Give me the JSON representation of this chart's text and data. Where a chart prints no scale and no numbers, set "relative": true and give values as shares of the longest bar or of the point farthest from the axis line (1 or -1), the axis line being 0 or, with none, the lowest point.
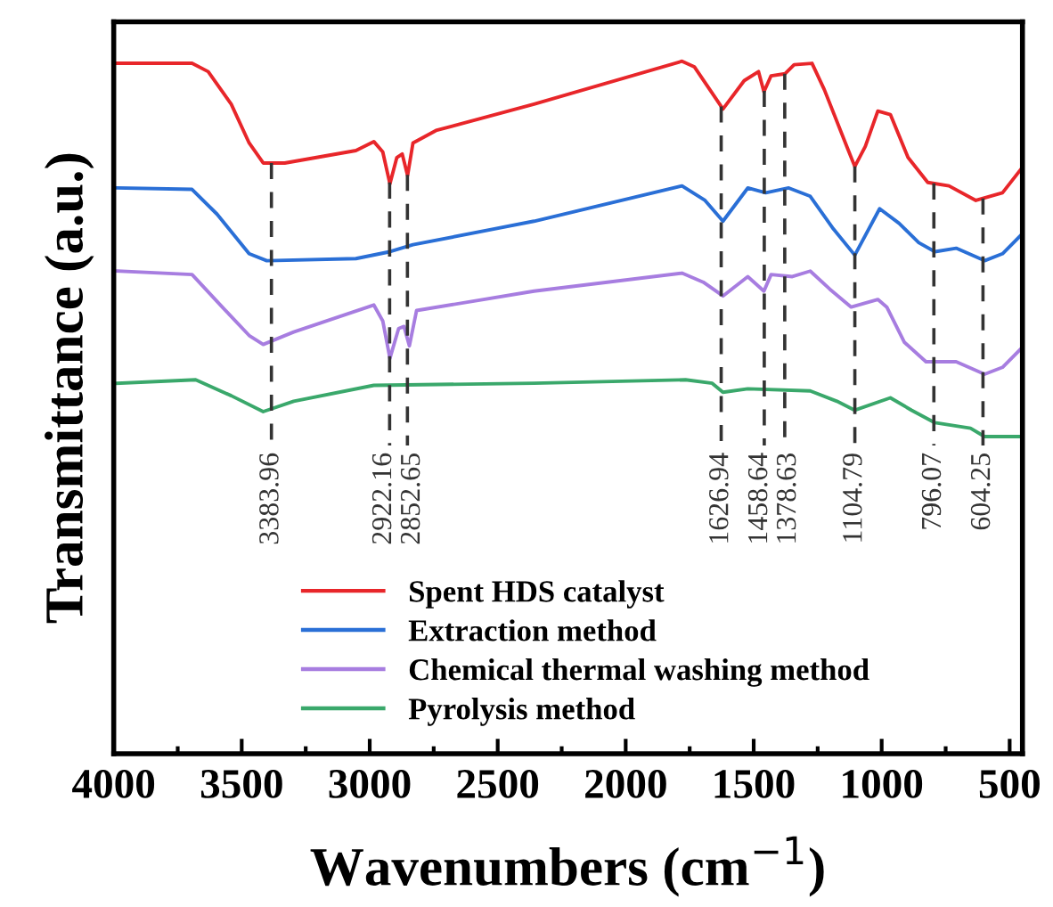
{
  "chart_data": {
    "type": "line",
    "relative": true,
    "xlabel": "Wavenumbers (cm$^{−1}$)",
    "ylabel": "Transmittance (a.u.)",
    "xlim": [
      4000,
      450
    ],
    "xticks": [
      4000,
      3500,
      3000,
      2500,
      2000,
      1500,
      1000,
      500
    ],
    "legend": "bottom",
    "grid": false,
    "series": [
      {
        "name": "Spent HDS catalyst",
        "color": "#e8262a",
        "x": [
          3986,
          3694,
          3631,
          3541,
          3471,
          3416,
          3332,
          3054,
          2984,
          2949,
          2921,
          2894,
          2873,
          2852,
          2831,
          2741,
          2358,
          1780,
          1732,
          1620,
          1537,
          1481,
          1460,
          1432,
          1377,
          1342,
          1272,
          1224,
          1133,
          1105,
          1064,
          1015,
          966,
          897,
          820,
          737,
          632,
          528,
          458
        ],
        "values": [
          0.997,
          0.997,
          0.985,
          0.938,
          0.882,
          0.853,
          0.853,
          0.871,
          0.884,
          0.869,
          0.823,
          0.861,
          0.866,
          0.835,
          0.882,
          0.9,
          0.938,
          1.0,
          0.992,
          0.931,
          0.972,
          0.985,
          0.956,
          0.979,
          0.982,
          0.995,
          0.997,
          0.959,
          0.874,
          0.848,
          0.877,
          0.928,
          0.923,
          0.861,
          0.825,
          0.82,
          0.799,
          0.81,
          0.843
        ]
      },
      {
        "name": "Extraction method",
        "color": "#2a6fd6",
        "x": [
          3986,
          3694,
          3596,
          3471,
          3402,
          3054,
          2921,
          2831,
          2358,
          1780,
          1690,
          1620,
          1523,
          1453,
          1363,
          1279,
          1189,
          1105,
          1008,
          932,
          855,
          792,
          709,
          598,
          528,
          458
        ],
        "values": [
          0.817,
          0.815,
          0.779,
          0.722,
          0.712,
          0.715,
          0.725,
          0.735,
          0.769,
          0.82,
          0.799,
          0.769,
          0.817,
          0.81,
          0.817,
          0.805,
          0.758,
          0.72,
          0.787,
          0.766,
          0.738,
          0.725,
          0.73,
          0.712,
          0.722,
          0.748
        ]
      },
      {
        "name": "Chemical thermal washing method",
        "color": "#a77de0",
        "x": [
          3986,
          3694,
          3576,
          3471,
          3416,
          3297,
          2984,
          2949,
          2921,
          2887,
          2866,
          2845,
          2817,
          2358,
          1780,
          1697,
          1620,
          1523,
          1460,
          1432,
          1349,
          1279,
          1203,
          1119,
          1015,
          980,
          911,
          827,
          709,
          598,
          528,
          458
        ],
        "values": [
          0.697,
          0.692,
          0.645,
          0.604,
          0.591,
          0.609,
          0.648,
          0.625,
          0.571,
          0.614,
          0.617,
          0.589,
          0.64,
          0.668,
          0.694,
          0.681,
          0.661,
          0.689,
          0.668,
          0.692,
          0.689,
          0.697,
          0.671,
          0.645,
          0.656,
          0.645,
          0.594,
          0.566,
          0.566,
          0.548,
          0.558,
          0.584
        ]
      },
      {
        "name": "Pyrolysis method",
        "color": "#3aa86b",
        "x": [
          3986,
          3680,
          3541,
          3416,
          3297,
          2984,
          2358,
          1766,
          1662,
          1620,
          1523,
          1279,
          1175,
          1105,
          966,
          883,
          792,
          653,
          598,
          458
        ],
        "values": [
          0.535,
          0.54,
          0.517,
          0.494,
          0.509,
          0.532,
          0.535,
          0.54,
          0.535,
          0.522,
          0.527,
          0.524,
          0.509,
          0.496,
          0.514,
          0.496,
          0.478,
          0.47,
          0.458,
          0.458
        ]
      }
    ],
    "ref_lines": [
      {
        "axis": "x",
        "value": 3383.96,
        "label": "3383.96",
        "line_style": "dashed",
        "color": "#333333"
      },
      {
        "axis": "x",
        "value": 2922.16,
        "label": "2922.16",
        "line_style": "dashed",
        "color": "#333333"
      },
      {
        "axis": "x",
        "value": 2852.65,
        "label": "2852.65",
        "line_style": "dashed",
        "color": "#333333"
      },
      {
        "axis": "x",
        "value": 1626.94,
        "label": "1626.94",
        "line_style": "dashed",
        "color": "#333333"
      },
      {
        "axis": "x",
        "value": 1458.64,
        "label": "1458.64",
        "line_style": "dashed",
        "color": "#333333"
      },
      {
        "axis": "x",
        "value": 1378.63,
        "label": "1378.63",
        "line_style": "dashed",
        "color": "#333333"
      },
      {
        "axis": "x",
        "value": 1104.79,
        "label": "1104.79",
        "line_style": "dashed",
        "color": "#333333"
      },
      {
        "axis": "x",
        "value": 796.07,
        "label": "796.07",
        "line_style": "dashed",
        "color": "#333333"
      },
      {
        "axis": "x",
        "value": 604.25,
        "label": "604.25",
        "line_style": "dashed",
        "color": "#333333"
      }
    ]
  }
}
